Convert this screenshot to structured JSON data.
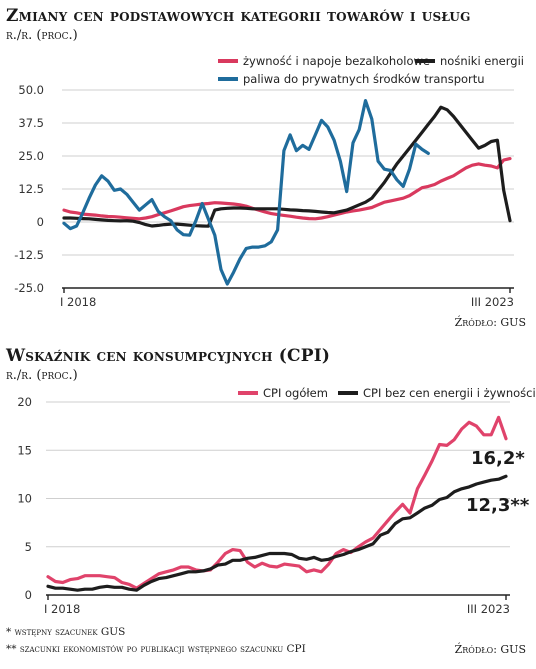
{
  "colors": {
    "food": "#d9395e",
    "energy": "#1d1d1d",
    "fuel": "#1f6c9c",
    "cpi": "#e0436b",
    "core": "#1d1d1d",
    "grid": "#cfcfcf",
    "axis": "#222222"
  },
  "footnotes": [
    "* wstępny szacunek GUS",
    "** szacunki ekonomistów po publikacji wstępnego szacunku CPI"
  ],
  "chart_data": [
    {
      "type": "line",
      "title": "Zmiany cen podstawowych kategorii towarów i usług",
      "subtitle": "r./r. (proc.)",
      "source": "Źródło: GUS",
      "ylim": [
        -25,
        50
      ],
      "yticks": [
        -25,
        -12.5,
        0,
        12.5,
        25,
        37.5,
        50
      ],
      "ytick_labels": [
        "-25.0",
        "-12.5",
        "0",
        "12.5",
        "25.0",
        "37.5",
        "50.0"
      ],
      "x_start_label": "I 2018",
      "x_end_label": "III 2023",
      "grid": true,
      "legend_placement": "top",
      "series": [
        {
          "name": "żywność i napoje bezalkoholowe",
          "color_key": "food",
          "values": [
            4.5,
            3.8,
            3.5,
            3.0,
            2.8,
            2.6,
            2.3,
            2.1,
            2.0,
            1.8,
            1.6,
            1.4,
            1.2,
            1.5,
            2.0,
            2.8,
            3.5,
            4.2,
            5.0,
            5.8,
            6.2,
            6.5,
            6.8,
            7.0,
            7.3,
            7.2,
            7.0,
            6.8,
            6.5,
            6.0,
            5.2,
            4.5,
            3.8,
            3.2,
            2.8,
            2.5,
            2.2,
            1.8,
            1.5,
            1.3,
            1.2,
            1.5,
            2.0,
            2.6,
            3.2,
            3.8,
            4.2,
            4.5,
            5.0,
            5.5,
            6.5,
            7.5,
            8.0,
            8.5,
            9.0,
            10.0,
            11.5,
            13.0,
            13.5,
            14.2,
            15.5,
            16.5,
            17.5,
            19.0,
            20.5,
            21.5,
            22.0,
            21.5,
            21.2,
            20.5,
            23.5,
            24.0
          ]
        },
        {
          "name": "nośniki energii",
          "color_key": "energy",
          "values": [
            1.5,
            1.5,
            1.4,
            1.3,
            1.2,
            1.0,
            0.8,
            0.6,
            0.5,
            0.4,
            0.5,
            0.3,
            -0.2,
            -1.0,
            -1.5,
            -1.3,
            -1.0,
            -0.8,
            -0.8,
            -1.0,
            -1.2,
            -1.4,
            -1.5,
            -1.6,
            4.5,
            5.0,
            5.2,
            5.3,
            5.3,
            5.2,
            5.0,
            5.0,
            5.0,
            5.0,
            5.0,
            4.8,
            4.6,
            4.5,
            4.3,
            4.2,
            4.0,
            3.8,
            3.6,
            3.5,
            4.0,
            4.5,
            5.5,
            6.5,
            7.5,
            9.0,
            12.0,
            15.0,
            18.5,
            22.0,
            25.0,
            28.0,
            31.0,
            34.0,
            37.0,
            40.0,
            43.5,
            42.5,
            40.0,
            37.0,
            34.0,
            31.0,
            28.0,
            29.0,
            30.5,
            31.0,
            12.0,
            0.5
          ]
        },
        {
          "name": "paliwa do prywatnych środków transportu",
          "color_key": "fuel",
          "values": [
            -0.5,
            -2.5,
            -1.5,
            3.5,
            9.0,
            14.0,
            17.5,
            15.5,
            12.0,
            12.5,
            10.5,
            7.5,
            4.5,
            6.5,
            8.5,
            4.0,
            2.0,
            0.5,
            -3.0,
            -4.8,
            -5.0,
            0.5,
            7.0,
            1.0,
            -5.0,
            -18.0,
            -23.5,
            -19.0,
            -14.0,
            -10.0,
            -9.5,
            -9.5,
            -9.0,
            -7.5,
            -3.0,
            27.0,
            33.0,
            27.0,
            29.0,
            27.5,
            33.0,
            38.5,
            36.0,
            31.0,
            23.0,
            11.5,
            30.0,
            35.0,
            46.0,
            39.0,
            23.0,
            20.0,
            19.5,
            16.0,
            13.5,
            20.0,
            29.5,
            27.5,
            26.0
          ]
        }
      ]
    },
    {
      "type": "line",
      "title": "Wskaźnik cen konsumpcyjnych (CPI)",
      "subtitle": "r./r. (proc.)",
      "source": "Źródło: GUS",
      "ylim": [
        0,
        20
      ],
      "yticks": [
        0,
        5,
        10,
        15,
        20
      ],
      "ytick_labels": [
        "0",
        "5",
        "10",
        "15",
        "20"
      ],
      "x_start_label": "I 2018",
      "x_end_label": "III 2023",
      "grid": true,
      "legend_placement": "top",
      "end_labels": {
        "cpi": "16,2*",
        "core": "12,3**"
      },
      "series": [
        {
          "name": "CPI ogółem",
          "color_key": "cpi",
          "values": [
            1.9,
            1.4,
            1.3,
            1.6,
            1.7,
            2.0,
            2.0,
            2.0,
            1.9,
            1.8,
            1.3,
            1.1,
            0.7,
            1.2,
            1.7,
            2.2,
            2.4,
            2.6,
            2.9,
            2.9,
            2.6,
            2.5,
            2.6,
            3.4,
            4.3,
            4.7,
            4.6,
            3.4,
            2.9,
            3.3,
            3.0,
            2.9,
            3.2,
            3.1,
            3.0,
            2.4,
            2.6,
            2.4,
            3.2,
            4.3,
            4.7,
            4.4,
            5.0,
            5.5,
            5.9,
            6.8,
            7.7,
            8.6,
            9.4,
            8.5,
            11.0,
            12.4,
            13.9,
            15.6,
            15.5,
            16.1,
            17.2,
            17.9,
            17.5,
            16.6,
            16.6,
            18.4,
            16.2
          ]
        },
        {
          "name": "CPI bez cen energii i żywności",
          "color_key": "core",
          "values": [
            0.9,
            0.7,
            0.7,
            0.6,
            0.5,
            0.6,
            0.6,
            0.8,
            0.9,
            0.8,
            0.8,
            0.6,
            0.5,
            1.0,
            1.4,
            1.7,
            1.8,
            2.0,
            2.2,
            2.4,
            2.4,
            2.5,
            2.7,
            3.1,
            3.2,
            3.6,
            3.6,
            3.8,
            3.9,
            4.1,
            4.3,
            4.3,
            4.3,
            4.2,
            3.8,
            3.7,
            3.9,
            3.6,
            3.7,
            4.0,
            4.2,
            4.5,
            4.7,
            5.0,
            5.3,
            6.2,
            6.5,
            7.4,
            7.9,
            8.0,
            8.5,
            9.0,
            9.3,
            9.9,
            10.1,
            10.7,
            11.0,
            11.2,
            11.5,
            11.7,
            11.9,
            12.0,
            12.3
          ]
        }
      ]
    }
  ]
}
